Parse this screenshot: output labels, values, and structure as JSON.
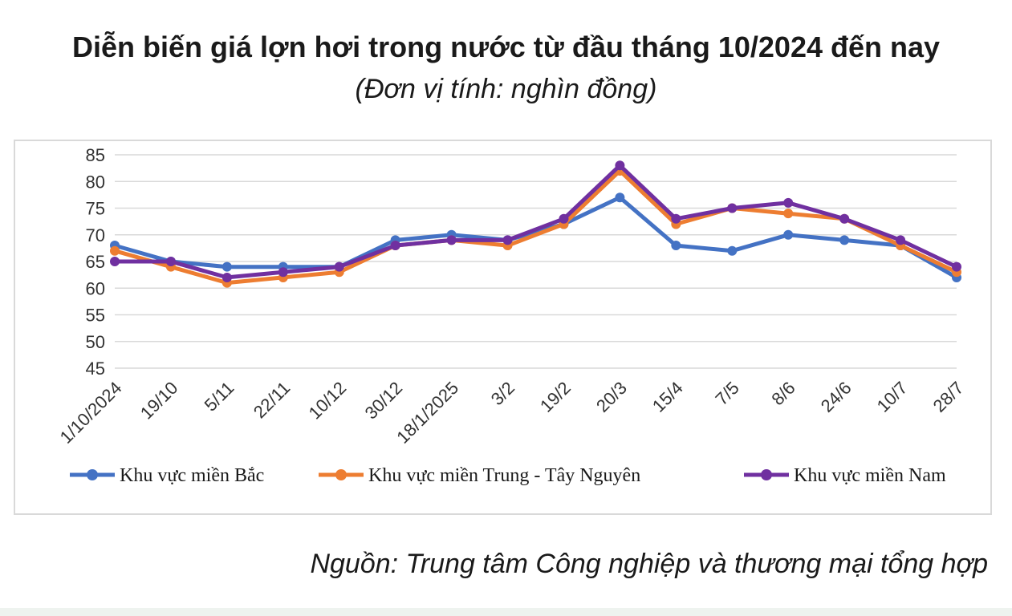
{
  "header": {
    "title": "Diễn biến giá lợn hơi trong nước từ đầu tháng 10/2024 đến nay",
    "subtitle": "(Đơn vị tính: nghìn đồng)"
  },
  "footer": {
    "source": "Nguồn: Trung tâm Công nghiệp và thương mại tổng hợp"
  },
  "chart_data": {
    "type": "line",
    "title": "",
    "xlabel": "",
    "ylabel": "",
    "ylim": [
      45,
      85
    ],
    "yticks": [
      85,
      80,
      75,
      70,
      65,
      60,
      55,
      50,
      45
    ],
    "grid": "horizontal",
    "legend_position": "bottom",
    "x_tick_labels": [
      "1/10/2024",
      "19/10",
      "5/11",
      "22/11",
      "10/12",
      "30/12",
      "18/1/2025",
      "3/2",
      "19/2",
      "20/3",
      "15/4",
      "7/5",
      "8/6",
      "24/6",
      "10/7",
      "28/7"
    ],
    "x": [
      "1/10/2024",
      "19/10",
      "5/11",
      "22/11",
      "10/12",
      "30/12",
      "18/1/2025",
      "3/2",
      "19/2",
      "20/3",
      "15/4",
      "7/5",
      "8/6",
      "24/6",
      "10/7",
      "28/7"
    ],
    "series": [
      {
        "name": "Khu vực miền Bắc",
        "color": "#4472c4",
        "values": [
          68,
          65,
          64,
          64,
          64,
          69,
          70,
          69,
          72,
          77,
          68,
          67,
          70,
          69,
          68,
          62
        ]
      },
      {
        "name": "Khu vực miền Trung - Tây Nguyên",
        "color": "#ed7d31",
        "values": [
          67,
          64,
          61,
          62,
          63,
          68,
          69,
          68,
          72,
          82,
          72,
          75,
          74,
          73,
          68,
          63
        ]
      },
      {
        "name": "Khu vực miền Nam",
        "color": "#7030a0",
        "values": [
          65,
          65,
          62,
          63,
          64,
          68,
          69,
          69,
          73,
          83,
          73,
          75,
          76,
          73,
          69,
          64
        ]
      }
    ]
  }
}
